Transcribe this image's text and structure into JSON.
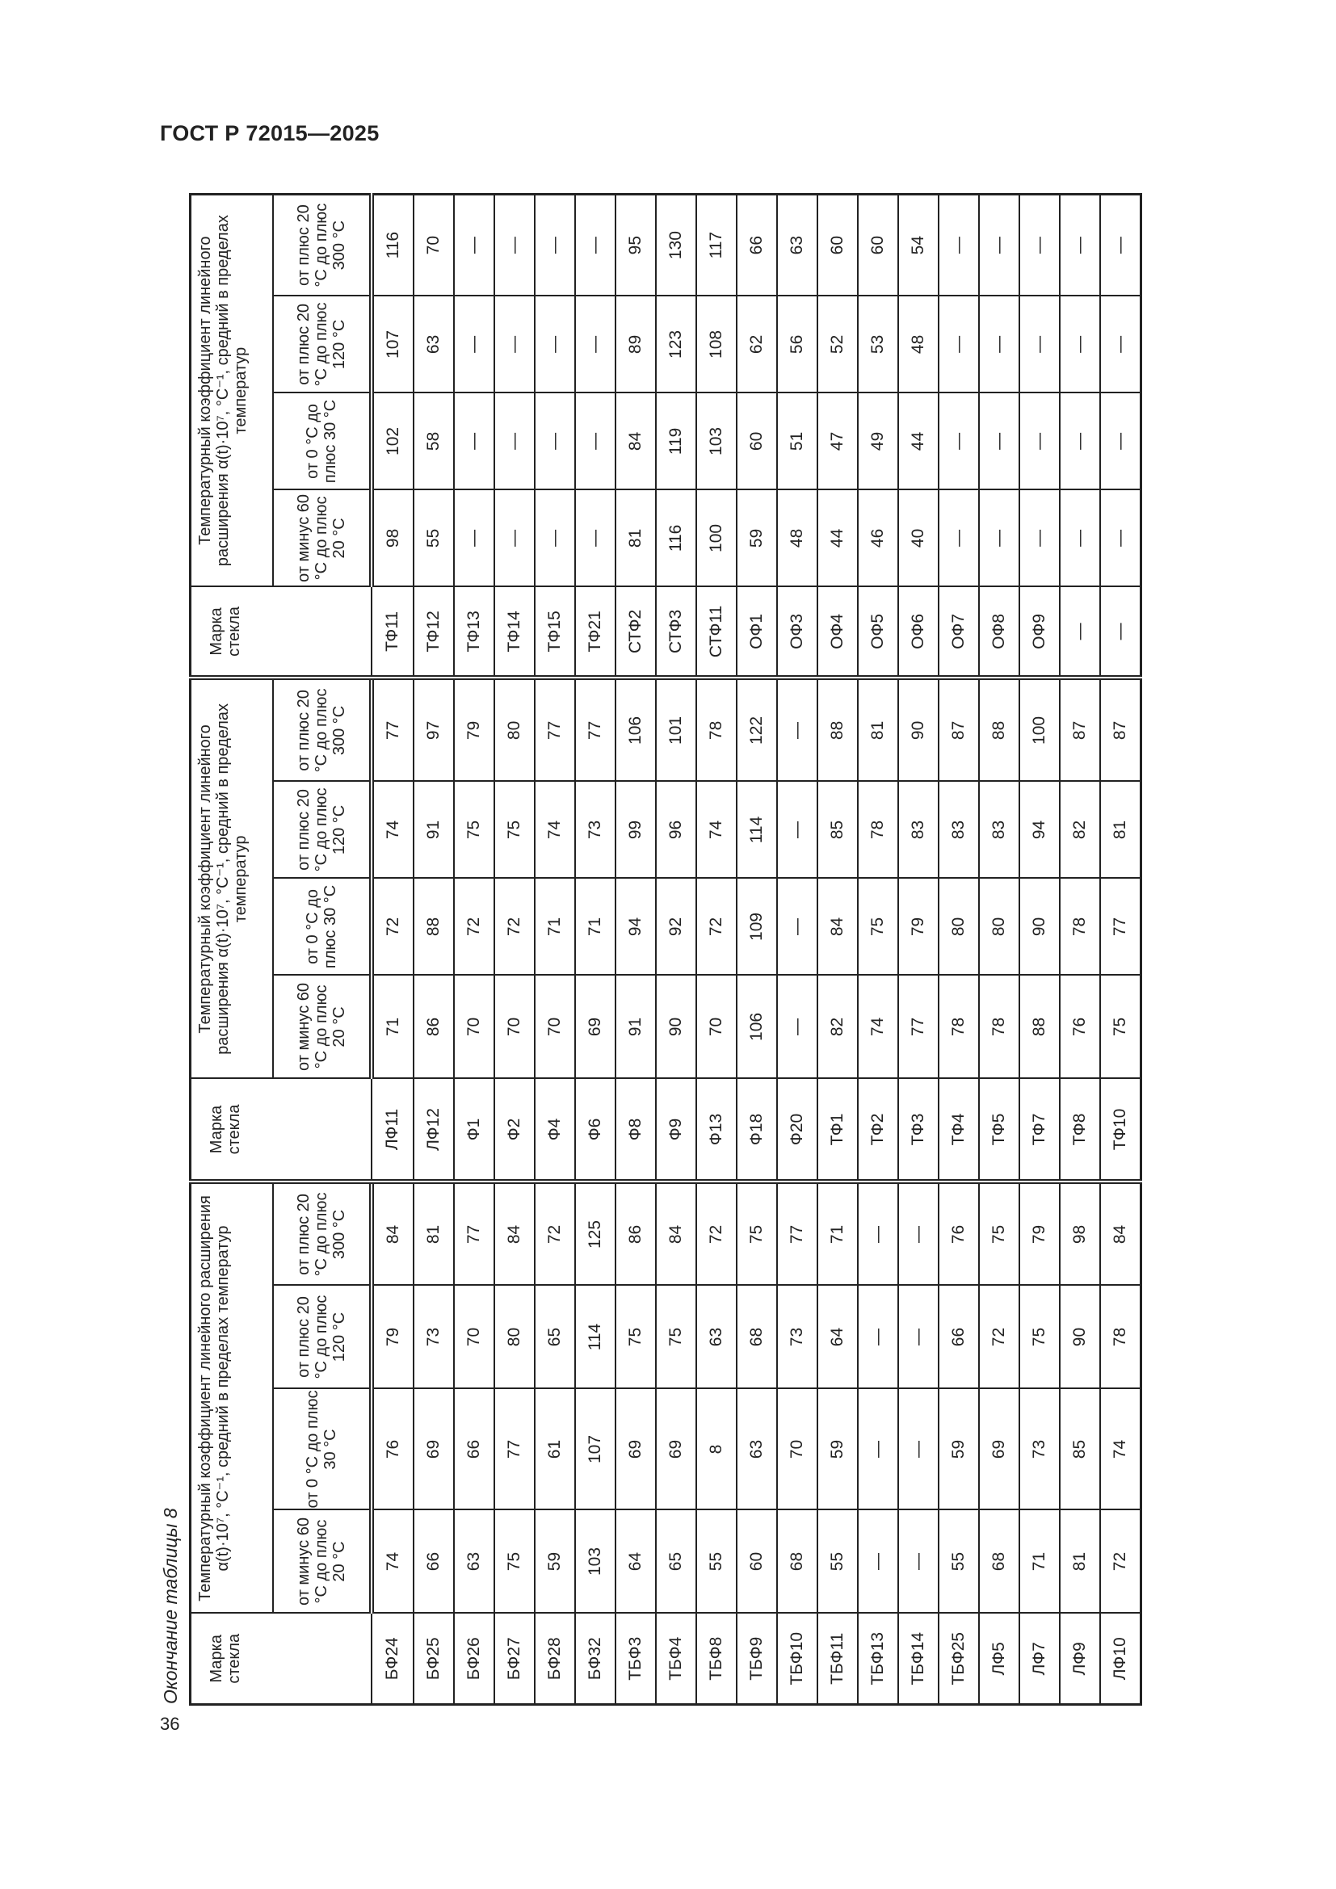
{
  "header": {
    "doc_title": "ГОСТ Р 72015—2025",
    "page_number": "36"
  },
  "caption": "Окончание таблицы 8",
  "table": {
    "groups": [
      {
        "mark_header": "Марка стекла",
        "group_header": "Температурный коэффициент линейного расширения α(t)·10⁷, °C⁻¹, средний в пределах температур"
      },
      {
        "mark_header": "Марка стекла",
        "group_header": "Температурный коэффициент линейного расширения α(t)·10⁷, °C⁻¹, средний в пределах температур"
      },
      {
        "mark_header": "Марка стекла",
        "group_header": "Температурный коэффициент линейного расширения α(t)·10⁷, °C⁻¹, средний в пределах температур"
      }
    ],
    "sub_headers": [
      "от минус 60 °C до плюс 20 °C",
      "от 0 °C до плюс 30 °C",
      "от плюс 20 °C до плюс 120 °C",
      "от плюс 20 °C до плюс 300 °C"
    ],
    "rows": [
      [
        "БФ24",
        "74",
        "76",
        "79",
        "84",
        "ЛФ11",
        "71",
        "72",
        "74",
        "77",
        "ТФ11",
        "98",
        "102",
        "107",
        "116"
      ],
      [
        "БФ25",
        "66",
        "69",
        "73",
        "81",
        "ЛФ12",
        "86",
        "88",
        "91",
        "97",
        "ТФ12",
        "55",
        "58",
        "63",
        "70"
      ],
      [
        "БФ26",
        "63",
        "66",
        "70",
        "77",
        "Ф1",
        "70",
        "72",
        "75",
        "79",
        "ТФ13",
        "—",
        "—",
        "—",
        "—"
      ],
      [
        "БФ27",
        "75",
        "77",
        "80",
        "84",
        "Ф2",
        "70",
        "72",
        "75",
        "80",
        "ТФ14",
        "—",
        "—",
        "—",
        "—"
      ],
      [
        "БФ28",
        "59",
        "61",
        "65",
        "72",
        "Ф4",
        "70",
        "71",
        "74",
        "77",
        "ТФ15",
        "—",
        "—",
        "—",
        "—"
      ],
      [
        "БФ32",
        "103",
        "107",
        "114",
        "125",
        "Ф6",
        "69",
        "71",
        "73",
        "77",
        "ТФ21",
        "—",
        "—",
        "—",
        "—"
      ],
      [
        "ТБФ3",
        "64",
        "69",
        "75",
        "86",
        "Ф8",
        "91",
        "94",
        "99",
        "106",
        "СТФ2",
        "81",
        "84",
        "89",
        "95"
      ],
      [
        "ТБФ4",
        "65",
        "69",
        "75",
        "84",
        "Ф9",
        "90",
        "92",
        "96",
        "101",
        "СТФ3",
        "116",
        "119",
        "123",
        "130"
      ],
      [
        "ТБФ8",
        "55",
        "8",
        "63",
        "72",
        "Ф13",
        "70",
        "72",
        "74",
        "78",
        "СТФ11",
        "100",
        "103",
        "108",
        "117"
      ],
      [
        "ТБФ9",
        "60",
        "63",
        "68",
        "75",
        "Ф18",
        "106",
        "109",
        "114",
        "122",
        "ОФ1",
        "59",
        "60",
        "62",
        "66"
      ],
      [
        "ТБФ10",
        "68",
        "70",
        "73",
        "77",
        "Ф20",
        "—",
        "—",
        "—",
        "—",
        "ОФ3",
        "48",
        "51",
        "56",
        "63"
      ],
      [
        "ТБФ11",
        "55",
        "59",
        "64",
        "71",
        "ТФ1",
        "82",
        "84",
        "85",
        "88",
        "ОФ4",
        "44",
        "47",
        "52",
        "60"
      ],
      [
        "ТБФ13",
        "—",
        "—",
        "—",
        "—",
        "ТФ2",
        "74",
        "75",
        "78",
        "81",
        "ОФ5",
        "46",
        "49",
        "53",
        "60"
      ],
      [
        "ТБФ14",
        "—",
        "—",
        "—",
        "—",
        "ТФ3",
        "77",
        "79",
        "83",
        "90",
        "ОФ6",
        "40",
        "44",
        "48",
        "54"
      ],
      [
        "ТБФ25",
        "55",
        "59",
        "66",
        "76",
        "ТФ4",
        "78",
        "80",
        "83",
        "87",
        "ОФ7",
        "—",
        "—",
        "—",
        "—"
      ],
      [
        "ЛФ5",
        "68",
        "69",
        "72",
        "75",
        "ТФ5",
        "78",
        "80",
        "83",
        "88",
        "ОФ8",
        "—",
        "—",
        "—",
        "—"
      ],
      [
        "ЛФ7",
        "71",
        "73",
        "75",
        "79",
        "ТФ7",
        "88",
        "90",
        "94",
        "100",
        "ОФ9",
        "—",
        "—",
        "—",
        "—"
      ],
      [
        "ЛФ9",
        "81",
        "85",
        "90",
        "98",
        "ТФ8",
        "76",
        "78",
        "82",
        "87",
        "—",
        "—",
        "—",
        "—",
        "—"
      ],
      [
        "ЛФ10",
        "72",
        "74",
        "78",
        "84",
        "ТФ10",
        "75",
        "77",
        "81",
        "87",
        "—",
        "—",
        "—",
        "—",
        "—"
      ]
    ]
  }
}
